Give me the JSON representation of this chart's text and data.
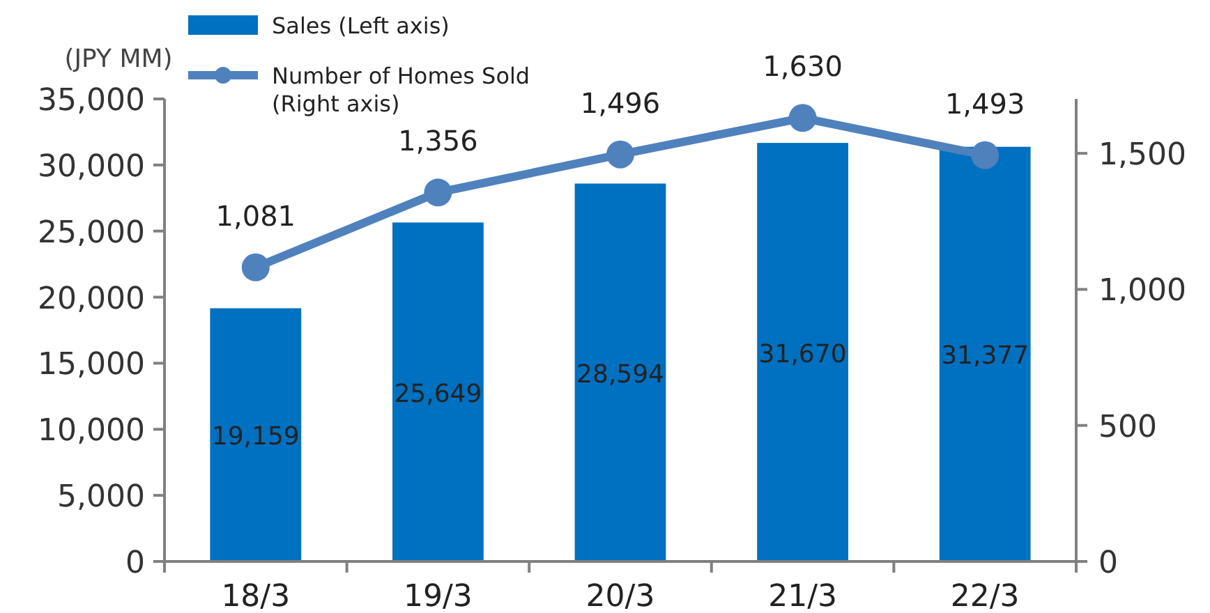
{
  "chart_data": {
    "type": "bar",
    "ylabel": "(JPY MM)",
    "categories": [
      "18/3",
      "19/3",
      "20/3",
      "21/3",
      "22/3"
    ],
    "series": [
      {
        "name": "Sales (Left axis)",
        "color": "#0070c0",
        "values": [
          19159,
          25649,
          28594,
          31670,
          31377
        ],
        "value_labels": [
          "19,159",
          "25,649",
          "28,594",
          "31,670",
          "31,377"
        ]
      },
      {
        "name": "Number of Homes Sold\n(Right axis)",
        "type": "line",
        "axis": "y2",
        "color": "#4f81bd",
        "marker": "circle",
        "values": [
          1081,
          1356,
          1496,
          1630,
          1493
        ],
        "value_labels": [
          "1,081",
          "1,356",
          "1,496",
          "1,630",
          "1,493"
        ]
      }
    ],
    "ylim": [
      0,
      35000
    ],
    "yticks": [
      {
        "value": 0,
        "label": "0"
      },
      {
        "value": 5000,
        "label": "5,000"
      },
      {
        "value": 10000,
        "label": "10,000"
      },
      {
        "value": 15000,
        "label": "15,000"
      },
      {
        "value": 20000,
        "label": "20,000"
      },
      {
        "value": 25000,
        "label": "25,000"
      },
      {
        "value": 30000,
        "label": "30,000"
      },
      {
        "value": 35000,
        "label": "35,000"
      }
    ],
    "y2lim": [
      0,
      1700
    ],
    "y2ticks": [
      {
        "value": 0,
        "label": "0"
      },
      {
        "value": 500,
        "label": "500"
      },
      {
        "value": 1000,
        "label": "1,000"
      },
      {
        "value": 1500,
        "label": "1,500"
      }
    ],
    "legend": "top left",
    "grid": false
  }
}
